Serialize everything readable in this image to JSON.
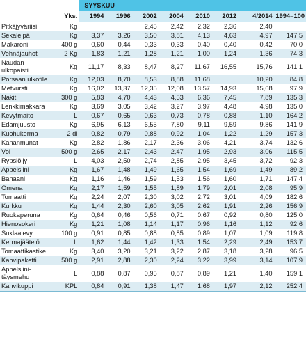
{
  "header": {
    "period": "SYYSKUU",
    "unit_col": "Yks.",
    "years": [
      "1994",
      "1996",
      "2002",
      "2004",
      "2010",
      "2012",
      "4/2014"
    ],
    "index_col": "1994=100"
  },
  "rows": [
    {
      "name": "Pitkäjyväriisi",
      "unit": "Kg",
      "v": [
        "",
        "",
        "2,45",
        "2,42",
        "2,32",
        "2,36",
        "2,40"
      ],
      "idx": ""
    },
    {
      "name": "Sekaleipä",
      "unit": "Kg",
      "v": [
        "3,37",
        "3,26",
        "3,50",
        "3,81",
        "4,13",
        "4,63",
        "4,97"
      ],
      "idx": "147,5"
    },
    {
      "name": "Makaroni",
      "unit": "400 g",
      "v": [
        "0,60",
        "0,44",
        "0,33",
        "0,33",
        "0,40",
        "0,40",
        "0,42"
      ],
      "idx": "70,0"
    },
    {
      "name": "Vehnäjauhot",
      "unit": "2 Kg",
      "v": [
        "1,83",
        "1,21",
        "1,28",
        "1,21",
        "1,00",
        "1,24",
        "1,36"
      ],
      "idx": "74,3"
    },
    {
      "name": "Naudan ulkopaisti",
      "unit": "Kg",
      "v": [
        "11,17",
        "8,33",
        "8,47",
        "8,27",
        "11,67",
        "16,55",
        "15,76"
      ],
      "idx": "141,1",
      "tall": true
    },
    {
      "name": "Porsaan ulkofile",
      "unit": "Kg",
      "v": [
        "12,03",
        "8,70",
        "8,53",
        "8,88",
        "11,68",
        "",
        "10,20"
      ],
      "idx": "84,8"
    },
    {
      "name": "Metvursti",
      "unit": "Kg",
      "v": [
        "16,02",
        "13,37",
        "12,35",
        "12,08",
        "13,57",
        "14,93",
        "15,68"
      ],
      "idx": "97,9"
    },
    {
      "name": "Nakit",
      "unit": "300 g",
      "v": [
        "5,83",
        "4,70",
        "4,43",
        "4,53",
        "6,36",
        "7,45",
        "7,89"
      ],
      "idx": "135,3"
    },
    {
      "name": "Lenkkimakkara",
      "unit": "Kg",
      "v": [
        "3,69",
        "3,05",
        "3,42",
        "3,27",
        "3,97",
        "4,48",
        "4,98"
      ],
      "idx": "135,0"
    },
    {
      "name": "Kevytmaito",
      "unit": "L",
      "v": [
        "0,67",
        "0,65",
        "0,63",
        "0,73",
        "0,78",
        "0,88",
        "1,10"
      ],
      "idx": "164,2"
    },
    {
      "name": "Edamjuusto",
      "unit": "Kg",
      "v": [
        "6,95",
        "6,13",
        "6,55",
        "7,80",
        "9,11",
        "9,59",
        "9,86"
      ],
      "idx": "141,9"
    },
    {
      "name": "Kuohukerma",
      "unit": "2 dl",
      "v": [
        "0,82",
        "0,79",
        "0,88",
        "0,92",
        "1,04",
        "1,22",
        "1,29"
      ],
      "idx": "157,3"
    },
    {
      "name": "Kananmunat",
      "unit": "Kg",
      "v": [
        "2,82",
        "1,86",
        "2,17",
        "2,36",
        "3,06",
        "4,21",
        "3,74"
      ],
      "idx": "132,6"
    },
    {
      "name": "Voi",
      "unit": "500 g",
      "v": [
        "2,65",
        "2,17",
        "2,43",
        "2,47",
        "1,95",
        "2,93",
        "3,06"
      ],
      "idx": "115,5"
    },
    {
      "name": "Rypsiöljy",
      "unit": "L",
      "v": [
        "4,03",
        "2,50",
        "2,74",
        "2,85",
        "2,95",
        "3,45",
        "3,72"
      ],
      "idx": "92,3"
    },
    {
      "name": "Appelsiini",
      "unit": "Kg",
      "v": [
        "1,67",
        "1,48",
        "1,49",
        "1,65",
        "1,54",
        "1,69",
        "1,49"
      ],
      "idx": "89,2"
    },
    {
      "name": "Banaani",
      "unit": "Kg",
      "v": [
        "1,16",
        "1,46",
        "1,59",
        "1,53",
        "1,56",
        "1,60",
        "1,71"
      ],
      "idx": "147,4"
    },
    {
      "name": "Omena",
      "unit": "Kg",
      "v": [
        "2,17",
        "1,59",
        "1,55",
        "1,89",
        "1,79",
        "2,01",
        "2,08"
      ],
      "idx": "95,9"
    },
    {
      "name": "Tomaatti",
      "unit": "Kg",
      "v": [
        "2,24",
        "2,07",
        "2,30",
        "3,02",
        "2,72",
        "3,01",
        "4,09"
      ],
      "idx": "182,6"
    },
    {
      "name": "Kurkku",
      "unit": "Kg",
      "v": [
        "1,44",
        "2,30",
        "2,60",
        "3,05",
        "2,62",
        "1,91",
        "2,26"
      ],
      "idx": "156,9"
    },
    {
      "name": "Ruokaperuna",
      "unit": "Kg",
      "v": [
        "0,64",
        "0,46",
        "0,56",
        "0,71",
        "0,67",
        "0,92",
        "0,80"
      ],
      "idx": "125,0"
    },
    {
      "name": "Hienosokeri",
      "unit": "Kg",
      "v": [
        "1,21",
        "1,08",
        "1,14",
        "1,17",
        "0,96",
        "1,16",
        "1,12"
      ],
      "idx": "92,6"
    },
    {
      "name": "Suklaalevy",
      "unit": "100 g",
      "v": [
        "0,91",
        "0,85",
        "0,88",
        "0,85",
        "0,89",
        "1,07",
        "1,09"
      ],
      "idx": "119,8"
    },
    {
      "name": "Kermajäätelö",
      "unit": "L",
      "v": [
        "1,62",
        "1,44",
        "1,42",
        "1,33",
        "1,54",
        "2,29",
        "2,49"
      ],
      "idx": "153,7"
    },
    {
      "name": "Tomaattikastike",
      "unit": "Kg",
      "v": [
        "3,40",
        "3,20",
        "3,21",
        "3,22",
        "2,87",
        "3,18",
        "3,28"
      ],
      "idx": "96,5"
    },
    {
      "name": "Kahvipaketti",
      "unit": "500 g",
      "v": [
        "2,91",
        "2,88",
        "2,30",
        "2,24",
        "3,22",
        "3,99",
        "3,14"
      ],
      "idx": "107,9"
    },
    {
      "name": "Appelsiini- täysmehu",
      "unit": "L",
      "v": [
        "0,88",
        "0,87",
        "0,95",
        "0,87",
        "0,89",
        "1,21",
        "1,40"
      ],
      "idx": "159,1",
      "tall": true
    },
    {
      "name": "Kahvikuppi",
      "unit": "KPL",
      "v": [
        "0,84",
        "0,91",
        "1,38",
        "1,47",
        "1,68",
        "1,97",
        "2,12"
      ],
      "idx": "252,4"
    }
  ]
}
